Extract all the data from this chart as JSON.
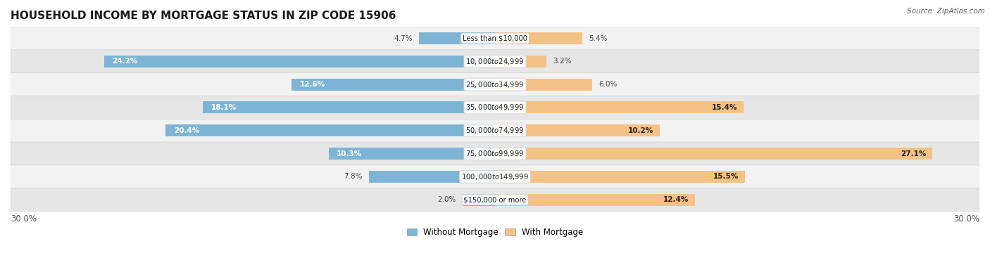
{
  "title": "HOUSEHOLD INCOME BY MORTGAGE STATUS IN ZIP CODE 15906",
  "source": "Source: ZipAtlas.com",
  "categories": [
    "Less than $10,000",
    "$10,000 to $24,999",
    "$25,000 to $34,999",
    "$35,000 to $49,999",
    "$50,000 to $74,999",
    "$75,000 to $99,999",
    "$100,000 to $149,999",
    "$150,000 or more"
  ],
  "without_mortgage": [
    4.7,
    24.2,
    12.6,
    18.1,
    20.4,
    10.3,
    7.8,
    2.0
  ],
  "with_mortgage": [
    5.4,
    3.2,
    6.0,
    15.4,
    10.2,
    27.1,
    15.5,
    12.4
  ],
  "color_without": "#7EB5D6",
  "color_with": "#F5C285",
  "xlim": 30.0,
  "legend_labels": [
    "Without Mortgage",
    "With Mortgage"
  ],
  "title_fontsize": 11,
  "bar_height": 0.52,
  "row_bg_colors": [
    "#f2f2f2",
    "#e6e6e6"
  ],
  "label_inside_threshold_wo": 8.0,
  "label_inside_threshold_wi": 8.0
}
